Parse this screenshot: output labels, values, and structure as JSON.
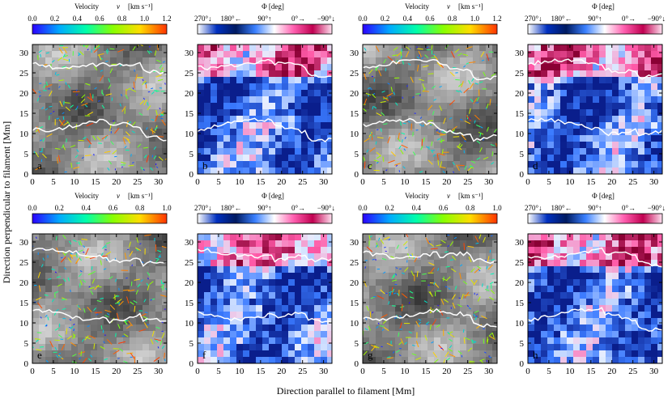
{
  "figure": {
    "ylabel": "Direction perpendicular to filament [Mm]",
    "xlabel": "Direction parallel to filament [Mm]"
  },
  "colorbars": {
    "velocity_label": "Velocity",
    "velocity_symbol": "v",
    "velocity_units": "[km s⁻¹]",
    "velocity_ticks_top": [
      "0.0",
      "0.2",
      "0.4",
      "0.6",
      "0.8",
      "1.0",
      "1.2"
    ],
    "velocity_ticks_bottom": [
      "0.0",
      "0.2",
      "0.4",
      "0.6",
      "0.8",
      "1.0"
    ],
    "phi_label": "Φ [deg]",
    "phi_ticks": [
      "270°↓",
      "180°←",
      "90°↑",
      "0°→",
      "−90°↓"
    ]
  },
  "chart_data": [
    {
      "panel": "a",
      "type": "heatmap",
      "quantity": "velocity",
      "ylim": [
        0,
        32
      ],
      "xlim": [
        0,
        32
      ]
    },
    {
      "panel": "b",
      "type": "heatmap",
      "quantity": "azimuth",
      "ylim": [
        0,
        32
      ],
      "xlim": [
        0,
        32
      ]
    },
    {
      "panel": "c",
      "type": "heatmap",
      "quantity": "velocity",
      "ylim": [
        0,
        32
      ],
      "xlim": [
        0,
        32
      ]
    },
    {
      "panel": "d",
      "type": "heatmap",
      "quantity": "azimuth",
      "ylim": [
        0,
        32
      ],
      "xlim": [
        0,
        32
      ]
    },
    {
      "panel": "e",
      "type": "heatmap",
      "quantity": "velocity",
      "ylim": [
        0,
        32
      ],
      "xlim": [
        0,
        32
      ]
    },
    {
      "panel": "f",
      "type": "heatmap",
      "quantity": "azimuth",
      "ylim": [
        0,
        32
      ],
      "xlim": [
        0,
        32
      ]
    },
    {
      "panel": "g",
      "type": "heatmap",
      "quantity": "velocity",
      "ylim": [
        0,
        32
      ],
      "xlim": [
        0,
        32
      ]
    },
    {
      "panel": "h",
      "type": "heatmap",
      "quantity": "azimuth",
      "ylim": [
        0,
        32
      ],
      "xlim": [
        0,
        32
      ]
    }
  ],
  "axes": {
    "yticks": [
      "0",
      "5",
      "10",
      "15",
      "20",
      "25",
      "30"
    ],
    "xticks": [
      "0",
      "5",
      "10",
      "15",
      "20",
      "25",
      "30"
    ]
  },
  "colors": {
    "velocity_scale": [
      "#2b00ff",
      "#00aaff",
      "#00ffaa",
      "#88ff00",
      "#ffdd00",
      "#ff3300"
    ],
    "phi_scale": [
      "#001a80",
      "#3060ff",
      "#e8f0ff",
      "#ff40a0",
      "#800030"
    ],
    "contour": "#ffffff"
  }
}
